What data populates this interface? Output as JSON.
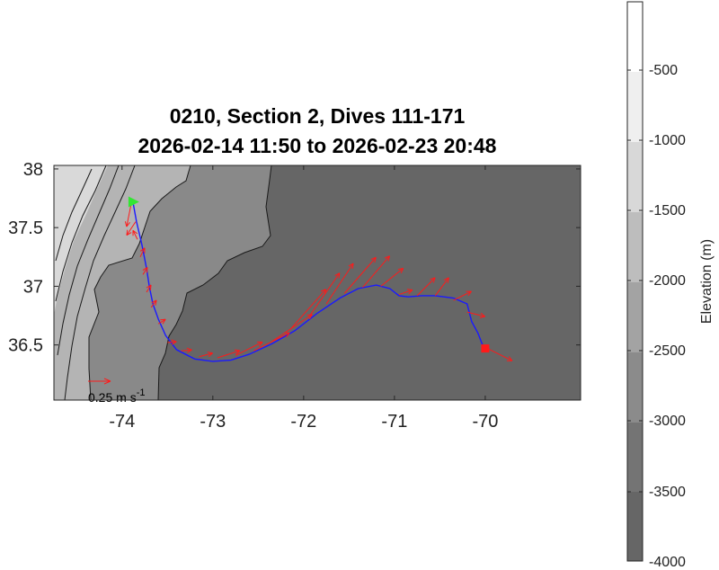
{
  "title": {
    "line1": "0210, Section 2, Dives 111-171",
    "line2": "2026-02-14 11:50 to 2026-02-23 20:48"
  },
  "colorbar": {
    "label": "Elevation (m)",
    "ticks": [
      "-500",
      "-1000",
      "-1500",
      "-2000",
      "-2500",
      "-3000",
      "-3500",
      "-4000"
    ]
  },
  "scale_label": "0.25 m s",
  "scale_label_sup": "-1",
  "colors": {
    "track": "#1a1aff",
    "vectors": "#ff1a1a",
    "start_marker": "#33e633",
    "end_marker": "#ff1a1a",
    "deep": "#666666",
    "slope3000": "#898989",
    "slope2000": "#b4b4b4"
  },
  "chart_data": {
    "type": "map",
    "xlabel": "",
    "ylabel": "",
    "xlim": [
      -74.75,
      -68.95
    ],
    "ylim": [
      36.03,
      38.03
    ],
    "xticks": [
      -74,
      -73,
      -72,
      -71,
      -70
    ],
    "yticks": [
      36.5,
      37,
      37.5,
      38
    ],
    "colorbar_range": [
      -4000,
      0
    ],
    "track": [
      [
        -73.88,
        37.72
      ],
      [
        -73.84,
        37.55
      ],
      [
        -73.78,
        37.35
      ],
      [
        -73.73,
        37.15
      ],
      [
        -73.7,
        37.0
      ],
      [
        -73.66,
        36.85
      ],
      [
        -73.6,
        36.72
      ],
      [
        -73.52,
        36.58
      ],
      [
        -73.4,
        36.46
      ],
      [
        -73.2,
        36.38
      ],
      [
        -73.0,
        36.36
      ],
      [
        -72.8,
        36.37
      ],
      [
        -72.6,
        36.42
      ],
      [
        -72.35,
        36.51
      ],
      [
        -72.1,
        36.62
      ],
      [
        -71.85,
        36.77
      ],
      [
        -71.6,
        36.9
      ],
      [
        -71.4,
        36.98
      ],
      [
        -71.2,
        37.01
      ],
      [
        -71.05,
        36.98
      ],
      [
        -70.95,
        36.92
      ],
      [
        -70.85,
        36.91
      ],
      [
        -70.7,
        36.92
      ],
      [
        -70.55,
        36.92
      ],
      [
        -70.35,
        36.9
      ],
      [
        -70.2,
        36.85
      ],
      [
        -70.15,
        36.7
      ],
      [
        -70.08,
        36.6
      ],
      [
        -70.02,
        36.48
      ]
    ],
    "start": [
      -73.88,
      37.72
    ],
    "end": [
      -70.0,
      36.47
    ],
    "currents": [
      {
        "lon": -73.9,
        "lat": 37.7,
        "u": -0.05,
        "v": -0.25
      },
      {
        "lon": -73.85,
        "lat": 37.55,
        "u": -0.1,
        "v": -0.15
      },
      {
        "lon": -73.83,
        "lat": 37.4,
        "u": -0.05,
        "v": 0.1
      },
      {
        "lon": -73.8,
        "lat": 37.25,
        "u": 0.05,
        "v": 0.1
      },
      {
        "lon": -73.77,
        "lat": 37.1,
        "u": 0.05,
        "v": 0.08
      },
      {
        "lon": -73.73,
        "lat": 36.95,
        "u": 0.05,
        "v": 0.08
      },
      {
        "lon": -73.68,
        "lat": 36.82,
        "u": 0.06,
        "v": 0.08
      },
      {
        "lon": -73.6,
        "lat": 36.68,
        "u": 0.08,
        "v": 0.05
      },
      {
        "lon": -73.5,
        "lat": 36.52,
        "u": 0.1,
        "v": 0.01
      },
      {
        "lon": -73.35,
        "lat": 36.45,
        "u": 0.12,
        "v": 0.01
      },
      {
        "lon": -73.15,
        "lat": 36.4,
        "u": 0.15,
        "v": 0.04
      },
      {
        "lon": -72.95,
        "lat": 36.39,
        "u": 0.25,
        "v": 0.08
      },
      {
        "lon": -72.75,
        "lat": 36.41,
        "u": 0.3,
        "v": 0.15
      },
      {
        "lon": -72.55,
        "lat": 36.45,
        "u": 0.4,
        "v": 0.2
      },
      {
        "lon": -72.35,
        "lat": 36.53,
        "u": 0.45,
        "v": 0.3
      },
      {
        "lon": -72.15,
        "lat": 36.63,
        "u": 0.4,
        "v": 0.45
      },
      {
        "lon": -71.95,
        "lat": 36.73,
        "u": 0.35,
        "v": 0.5
      },
      {
        "lon": -71.75,
        "lat": 36.85,
        "u": 0.3,
        "v": 0.45
      },
      {
        "lon": -71.55,
        "lat": 36.94,
        "u": 0.35,
        "v": 0.4
      },
      {
        "lon": -71.35,
        "lat": 36.99,
        "u": 0.3,
        "v": 0.35
      },
      {
        "lon": -71.15,
        "lat": 37.0,
        "u": 0.25,
        "v": 0.2
      },
      {
        "lon": -70.95,
        "lat": 36.93,
        "u": 0.15,
        "v": 0.05
      },
      {
        "lon": -70.75,
        "lat": 36.92,
        "u": 0.2,
        "v": 0.2
      },
      {
        "lon": -70.55,
        "lat": 36.92,
        "u": 0.15,
        "v": 0.2
      },
      {
        "lon": -70.35,
        "lat": 36.88,
        "u": 0.2,
        "v": 0.1
      },
      {
        "lon": -70.2,
        "lat": 36.78,
        "u": 0.2,
        "v": -0.05
      },
      {
        "lon": -70.0,
        "lat": 36.48,
        "u": 0.3,
        "v": -0.15
      }
    ],
    "scale_arrow_speed_ms": 0.25
  }
}
